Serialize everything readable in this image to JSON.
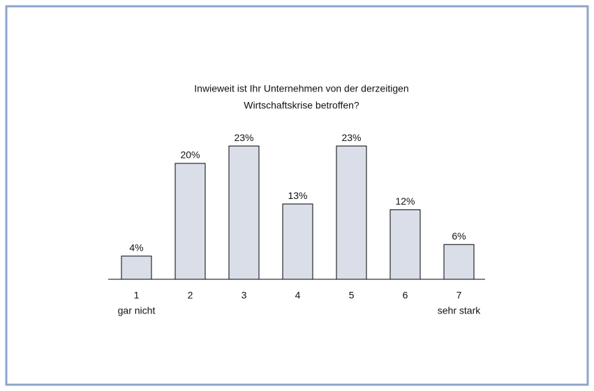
{
  "chart_data": {
    "type": "bar",
    "title": [
      "Inwieweit ist Ihr Unternehmen  von der derzeitigen",
      "Wirtschaftskrise betroffen?"
    ],
    "categories": [
      "1",
      "2",
      "3",
      "4",
      "5",
      "6",
      "7"
    ],
    "category_notes": [
      "gar nicht",
      null,
      null,
      null,
      null,
      null,
      "sehr stark"
    ],
    "values": [
      4,
      20,
      23,
      13,
      23,
      12,
      6
    ],
    "value_labels": [
      "4%",
      "20%",
      "23%",
      "13%",
      "23%",
      "12%",
      "6%"
    ],
    "color": "#d9dee8",
    "ylim": [
      0,
      25
    ]
  }
}
